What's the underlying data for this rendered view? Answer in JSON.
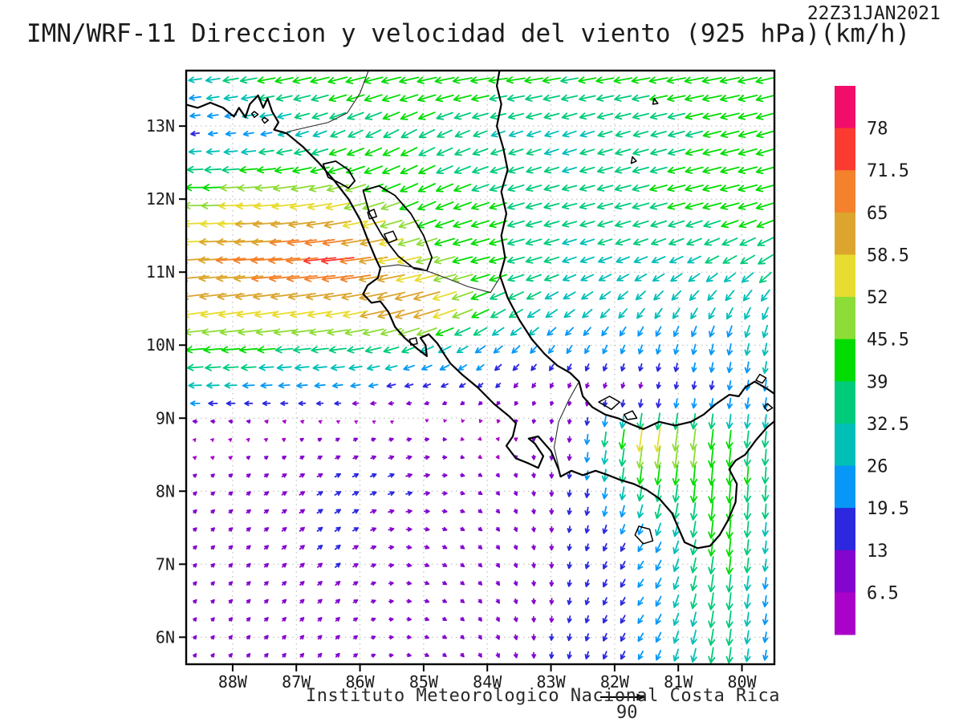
{
  "chart_data": {
    "type": "vector_field_map",
    "title": "IMN/WRF-11 Direccion y velocidad del viento (925 hPa)(km/h)",
    "timestamp": "22Z31JAN2021",
    "footer": "Instituto Meteorologico Nacional Costa Rica",
    "units": "km/h",
    "level": "925 hPa",
    "reference_arrow": {
      "label": "90",
      "speed": 90
    },
    "axes": {
      "lon_range": [
        -88.73,
        -79.49
      ],
      "lat_range": [
        5.63,
        13.76
      ],
      "lon_ticks": [
        {
          "value": -88,
          "label": "88W"
        },
        {
          "value": -87,
          "label": "87W"
        },
        {
          "value": -86,
          "label": "86W"
        },
        {
          "value": -85,
          "label": "85W"
        },
        {
          "value": -84,
          "label": "84W"
        },
        {
          "value": -83,
          "label": "83W"
        },
        {
          "value": -82,
          "label": "82W"
        },
        {
          "value": -81,
          "label": "81W"
        },
        {
          "value": -80,
          "label": "80W"
        }
      ],
      "lat_ticks": [
        {
          "value": 6,
          "label": "6N"
        },
        {
          "value": 7,
          "label": "7N"
        },
        {
          "value": 8,
          "label": "8N"
        },
        {
          "value": 9,
          "label": "9N"
        },
        {
          "value": 10,
          "label": "10N"
        },
        {
          "value": 11,
          "label": "11N"
        },
        {
          "value": 12,
          "label": "12N"
        },
        {
          "value": 13,
          "label": "13N"
        }
      ],
      "grid": "dotted"
    },
    "colorbar": {
      "position": "right",
      "levels": [
        6.5,
        13,
        19.5,
        26,
        32.5,
        39,
        45.5,
        52,
        58.5,
        65,
        71.5,
        78
      ],
      "colors": [
        "#a903c9",
        "#8405ce",
        "#2b28df",
        "#0798f7",
        "#00bfb7",
        "#00cb7b",
        "#02dc02",
        "#8edc38",
        "#e8dc30",
        "#dca62e",
        "#f4812b",
        "#fb3b31",
        "#f20d6b"
      ]
    },
    "wind_grid": {
      "comment": "u eastward, v northward, km/h; lats north-to-south",
      "lons": [
        -88.7,
        -87.5,
        -86.3,
        -85.1,
        -83.9,
        -82.7,
        -81.5,
        -80.3,
        -79.4
      ],
      "lats": [
        13.8,
        12.9,
        12.0,
        11.1,
        10.5,
        9.9,
        9.3,
        8.7,
        8.1,
        7.2,
        6.3,
        5.6
      ],
      "u": [
        [
          -30,
          -42,
          -44,
          -44,
          -45,
          -40,
          -42,
          -44,
          -42
        ],
        [
          -18,
          -24,
          -32,
          -34,
          -30,
          -30,
          -33,
          -40,
          -40
        ],
        [
          -48,
          -54,
          -50,
          -38,
          -38,
          -32,
          -38,
          -42,
          -42
        ],
        [
          -62,
          -70,
          -75,
          -50,
          -40,
          -30,
          -28,
          -28,
          -32
        ],
        [
          -58,
          -54,
          -56,
          -66,
          -34,
          -24,
          -17,
          -14,
          -12
        ],
        [
          -40,
          -38,
          -36,
          -28,
          -18,
          -10,
          -5,
          -4,
          -5
        ],
        [
          -25,
          -20,
          -17,
          -13,
          -7,
          -2,
          -2,
          -3,
          -4
        ],
        [
          2,
          4,
          8,
          10,
          2,
          -1,
          -8,
          -5,
          -3
        ],
        [
          6,
          9,
          13,
          13,
          6,
          -2,
          -5,
          -3,
          -2
        ],
        [
          6,
          8,
          11,
          10,
          6,
          -2,
          -12,
          -4,
          -3
        ],
        [
          5,
          7,
          8,
          9,
          5,
          -3,
          -12,
          -5,
          -3
        ],
        [
          4,
          6,
          7,
          8,
          4,
          -3,
          -10,
          -5,
          -3
        ]
      ],
      "v": [
        [
          -4,
          -8,
          -10,
          -8,
          -5,
          -6,
          -7,
          -8,
          -10
        ],
        [
          -2,
          -4,
          -14,
          -18,
          -10,
          -10,
          -9,
          -10,
          -12
        ],
        [
          0,
          -4,
          -12,
          -18,
          -12,
          -8,
          -10,
          -10,
          -12
        ],
        [
          -4,
          -5,
          -8,
          -12,
          -10,
          -10,
          -12,
          -16,
          -22
        ],
        [
          -8,
          -8,
          -10,
          -18,
          -18,
          -17,
          -22,
          -24,
          -27
        ],
        [
          -3,
          -3,
          -4,
          -12,
          -15,
          -17,
          -19,
          -24,
          -28
        ],
        [
          0,
          -1,
          -2,
          -3,
          -7,
          -8,
          -10,
          -18,
          -25
        ],
        [
          2,
          3,
          4,
          2,
          -4,
          -12,
          -58,
          -42,
          -32
        ],
        [
          5,
          6,
          7,
          4,
          -6,
          -14,
          -38,
          -44,
          -34
        ],
        [
          6,
          7,
          9,
          -3,
          -7,
          -13,
          -18,
          -42,
          -22
        ],
        [
          6,
          7,
          7,
          -2,
          -8,
          -14,
          -18,
          -40,
          -18
        ],
        [
          6,
          7,
          8,
          -3,
          -9,
          -15,
          -18,
          -36,
          -16
        ]
      ]
    },
    "map": {
      "coastlines": [
        [
          [
            -88.75,
            13.3
          ],
          [
            -88.55,
            13.25
          ],
          [
            -88.35,
            13.32
          ],
          [
            -88.15,
            13.25
          ],
          [
            -87.98,
            13.13
          ],
          [
            -87.9,
            13.25
          ],
          [
            -87.8,
            13.12
          ],
          [
            -87.73,
            13.3
          ],
          [
            -87.6,
            13.42
          ],
          [
            -87.52,
            13.25
          ],
          [
            -87.45,
            13.38
          ],
          [
            -87.38,
            13.2
          ],
          [
            -87.28,
            13.05
          ],
          [
            -87.35,
            12.95
          ],
          [
            -87.15,
            12.9
          ],
          [
            -86.9,
            12.72
          ],
          [
            -86.65,
            12.5
          ],
          [
            -86.4,
            12.25
          ],
          [
            -86.18,
            12.0
          ],
          [
            -86.0,
            11.72
          ],
          [
            -85.88,
            11.45
          ],
          [
            -85.75,
            11.18
          ],
          [
            -85.68,
            11.05
          ],
          [
            -85.72,
            10.92
          ],
          [
            -85.88,
            10.82
          ],
          [
            -85.95,
            10.7
          ],
          [
            -85.82,
            10.58
          ],
          [
            -85.68,
            10.6
          ],
          [
            -85.55,
            10.45
          ],
          [
            -85.45,
            10.25
          ],
          [
            -85.3,
            10.1
          ],
          [
            -85.1,
            9.95
          ],
          [
            -84.95,
            9.85
          ],
          [
            -84.97,
            10.0
          ],
          [
            -85.05,
            10.1
          ],
          [
            -84.92,
            10.15
          ],
          [
            -84.78,
            10.02
          ],
          [
            -84.68,
            9.88
          ],
          [
            -84.58,
            9.75
          ],
          [
            -84.4,
            9.6
          ],
          [
            -84.15,
            9.42
          ],
          [
            -83.9,
            9.2
          ],
          [
            -83.65,
            9.02
          ],
          [
            -83.55,
            8.93
          ],
          [
            -83.6,
            8.75
          ],
          [
            -83.7,
            8.62
          ],
          [
            -83.55,
            8.45
          ],
          [
            -83.35,
            8.38
          ],
          [
            -83.2,
            8.32
          ],
          [
            -83.12,
            8.48
          ],
          [
            -83.25,
            8.65
          ],
          [
            -83.35,
            8.72
          ],
          [
            -83.2,
            8.75
          ],
          [
            -83.0,
            8.55
          ],
          [
            -82.88,
            8.3
          ],
          [
            -82.85,
            8.2
          ],
          [
            -82.68,
            8.28
          ],
          [
            -82.5,
            8.22
          ],
          [
            -82.3,
            8.28
          ],
          [
            -82.1,
            8.22
          ],
          [
            -81.9,
            8.15
          ],
          [
            -81.7,
            8.1
          ],
          [
            -81.5,
            8.02
          ],
          [
            -81.3,
            7.9
          ],
          [
            -81.1,
            7.7
          ],
          [
            -81.0,
            7.5
          ],
          [
            -80.9,
            7.3
          ],
          [
            -80.7,
            7.22
          ],
          [
            -80.5,
            7.25
          ],
          [
            -80.35,
            7.4
          ],
          [
            -80.22,
            7.6
          ],
          [
            -80.1,
            7.85
          ],
          [
            -80.08,
            8.1
          ],
          [
            -80.2,
            8.3
          ],
          [
            -80.1,
            8.42
          ],
          [
            -79.95,
            8.5
          ],
          [
            -79.78,
            8.7
          ],
          [
            -79.6,
            8.88
          ],
          [
            -79.5,
            8.95
          ],
          [
            -79.42,
            9.05
          ]
        ],
        [
          [
            -79.4,
            9.28
          ],
          [
            -79.6,
            9.4
          ],
          [
            -79.8,
            9.5
          ],
          [
            -79.95,
            9.42
          ],
          [
            -80.05,
            9.3
          ],
          [
            -80.2,
            9.32
          ],
          [
            -80.4,
            9.2
          ],
          [
            -80.6,
            9.05
          ],
          [
            -80.8,
            8.95
          ],
          [
            -81.05,
            8.9
          ],
          [
            -81.3,
            8.95
          ],
          [
            -81.55,
            8.85
          ],
          [
            -81.75,
            8.92
          ],
          [
            -81.95,
            9.0
          ],
          [
            -82.15,
            9.05
          ],
          [
            -82.35,
            9.15
          ],
          [
            -82.5,
            9.3
          ],
          [
            -82.56,
            9.5
          ],
          [
            -82.7,
            9.62
          ],
          [
            -82.9,
            9.72
          ],
          [
            -83.1,
            9.88
          ],
          [
            -83.3,
            10.08
          ],
          [
            -83.5,
            10.35
          ],
          [
            -83.68,
            10.65
          ],
          [
            -83.8,
            10.95
          ],
          [
            -83.72,
            11.2
          ],
          [
            -83.78,
            11.5
          ],
          [
            -83.7,
            11.8
          ],
          [
            -83.78,
            12.1
          ],
          [
            -83.68,
            12.4
          ],
          [
            -83.75,
            12.7
          ],
          [
            -83.85,
            13.0
          ],
          [
            -83.78,
            13.3
          ],
          [
            -83.85,
            13.55
          ],
          [
            -83.8,
            13.8
          ]
        ]
      ],
      "borders": [
        [
          [
            -85.85,
            13.8
          ],
          [
            -86.0,
            13.45
          ],
          [
            -86.2,
            13.18
          ],
          [
            -86.5,
            13.05
          ],
          [
            -86.85,
            12.98
          ],
          [
            -87.15,
            12.92
          ]
        ],
        [
          [
            -85.68,
            11.07
          ],
          [
            -85.4,
            11.1
          ],
          [
            -85.05,
            11.05
          ],
          [
            -84.65,
            10.92
          ],
          [
            -84.3,
            10.8
          ],
          [
            -83.95,
            10.72
          ],
          [
            -83.8,
            10.93
          ]
        ],
        [
          [
            -82.56,
            9.5
          ],
          [
            -82.72,
            9.25
          ],
          [
            -82.88,
            8.95
          ],
          [
            -82.95,
            8.6
          ],
          [
            -82.85,
            8.22
          ]
        ]
      ],
      "lakes": [
        [
          [
            -86.58,
            12.48
          ],
          [
            -86.38,
            12.52
          ],
          [
            -86.18,
            12.4
          ],
          [
            -86.08,
            12.25
          ],
          [
            -86.18,
            12.15
          ],
          [
            -86.32,
            12.22
          ],
          [
            -86.5,
            12.3
          ],
          [
            -86.58,
            12.48
          ]
        ],
        [
          [
            -85.95,
            12.12
          ],
          [
            -85.7,
            12.18
          ],
          [
            -85.45,
            12.05
          ],
          [
            -85.2,
            11.8
          ],
          [
            -85.0,
            11.5
          ],
          [
            -84.87,
            11.2
          ],
          [
            -84.95,
            11.02
          ],
          [
            -85.15,
            11.05
          ],
          [
            -85.4,
            11.22
          ],
          [
            -85.65,
            11.5
          ],
          [
            -85.85,
            11.8
          ],
          [
            -85.95,
            12.12
          ]
        ]
      ],
      "islands": [
        [
          [
            -85.88,
            11.82
          ],
          [
            -85.78,
            11.86
          ],
          [
            -85.74,
            11.76
          ],
          [
            -85.85,
            11.73
          ],
          [
            -85.88,
            11.82
          ]
        ],
        [
          [
            -85.62,
            11.52
          ],
          [
            -85.48,
            11.56
          ],
          [
            -85.42,
            11.45
          ],
          [
            -85.55,
            11.4
          ],
          [
            -85.62,
            11.52
          ]
        ],
        [
          [
            -85.22,
            10.08
          ],
          [
            -85.12,
            10.1
          ],
          [
            -85.1,
            10.02
          ],
          [
            -85.2,
            10.0
          ],
          [
            -85.22,
            10.08
          ]
        ],
        [
          [
            -82.25,
            9.22
          ],
          [
            -82.08,
            9.3
          ],
          [
            -81.92,
            9.22
          ],
          [
            -82.05,
            9.12
          ],
          [
            -82.25,
            9.22
          ]
        ],
        [
          [
            -81.85,
            9.05
          ],
          [
            -81.72,
            9.1
          ],
          [
            -81.65,
            9.0
          ],
          [
            -81.8,
            8.98
          ],
          [
            -81.85,
            9.05
          ]
        ],
        [
          [
            -81.62,
            7.52
          ],
          [
            -81.45,
            7.48
          ],
          [
            -81.4,
            7.32
          ],
          [
            -81.55,
            7.28
          ],
          [
            -81.68,
            7.4
          ],
          [
            -81.62,
            7.52
          ]
        ],
        [
          [
            -81.72,
            12.58
          ],
          [
            -81.66,
            12.52
          ],
          [
            -81.74,
            12.49
          ],
          [
            -81.72,
            12.58
          ]
        ],
        [
          [
            -81.38,
            13.38
          ],
          [
            -81.32,
            13.31
          ],
          [
            -81.4,
            13.3
          ],
          [
            -81.38,
            13.38
          ]
        ],
        [
          [
            -79.72,
            9.6
          ],
          [
            -79.62,
            9.55
          ],
          [
            -79.68,
            9.48
          ],
          [
            -79.78,
            9.52
          ],
          [
            -79.72,
            9.6
          ]
        ],
        [
          [
            -79.6,
            9.2
          ],
          [
            -79.52,
            9.14
          ],
          [
            -79.6,
            9.1
          ],
          [
            -79.65,
            9.16
          ],
          [
            -79.6,
            9.2
          ]
        ],
        [
          [
            -87.66,
            13.2
          ],
          [
            -87.6,
            13.16
          ],
          [
            -87.66,
            13.12
          ],
          [
            -87.7,
            13.17
          ],
          [
            -87.66,
            13.2
          ]
        ],
        [
          [
            -87.5,
            13.12
          ],
          [
            -87.44,
            13.08
          ],
          [
            -87.5,
            13.04
          ],
          [
            -87.54,
            13.09
          ],
          [
            -87.5,
            13.12
          ]
        ]
      ]
    }
  }
}
